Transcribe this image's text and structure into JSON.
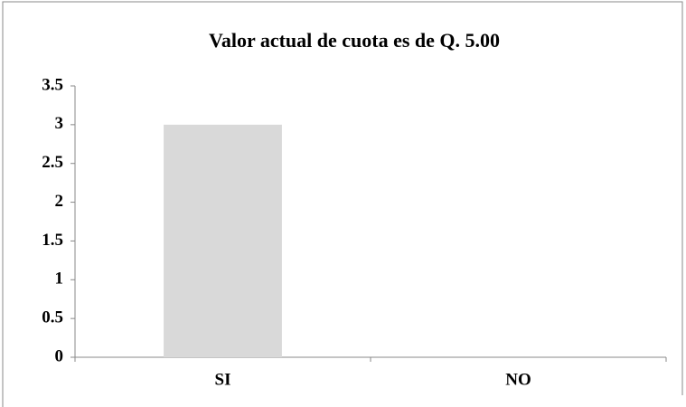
{
  "chart_data": {
    "type": "bar",
    "title": "Valor actual de cuota es de Q. 5.00",
    "categories": [
      "SI",
      "NO"
    ],
    "values": [
      3,
      0
    ],
    "color": "#d9d9d9",
    "ylim": [
      0,
      3.5
    ],
    "yticks": [
      0,
      0.5,
      1,
      1.5,
      2,
      2.5,
      3,
      3.5
    ],
    "grid": false
  }
}
